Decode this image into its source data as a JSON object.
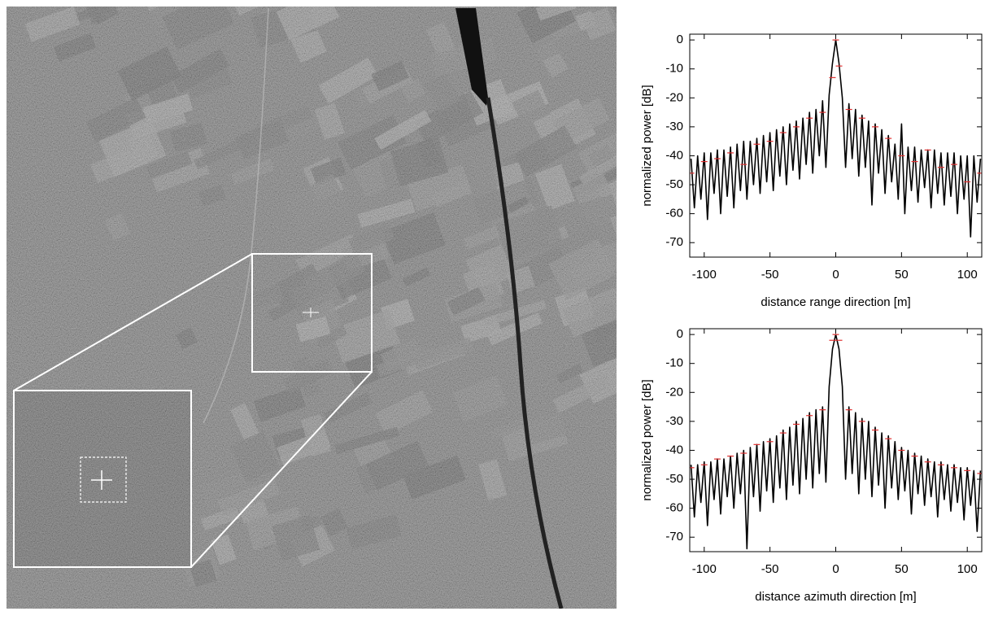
{
  "chart_data": [
    {
      "type": "line",
      "xlabel": "distance range direction [m]",
      "ylabel": "normalized power [dB]",
      "xlim": [
        -111,
        111
      ],
      "ylim": [
        -75,
        2
      ],
      "xticks": [
        -100,
        -50,
        0,
        50,
        100
      ],
      "yticks": [
        0,
        -10,
        -20,
        -30,
        -40,
        -50,
        -60,
        -70
      ],
      "grid": false,
      "x": [
        -110,
        -107.5,
        -105,
        -102.5,
        -100,
        -97.5,
        -95,
        -92.5,
        -90,
        -87.5,
        -85,
        -82.5,
        -80,
        -77.5,
        -75,
        -72.5,
        -70,
        -67.5,
        -65,
        -62.5,
        -60,
        -57.5,
        -55,
        -52.5,
        -50,
        -47.5,
        -45,
        -42.5,
        -40,
        -37.5,
        -35,
        -32.5,
        -30,
        -27.5,
        -25,
        -22.5,
        -20,
        -17.5,
        -15,
        -12.5,
        -10,
        -7.5,
        -5,
        -2.5,
        0,
        2.5,
        5,
        7.5,
        10,
        12.5,
        15,
        17.5,
        20,
        22.5,
        25,
        27.5,
        30,
        32.5,
        35,
        37.5,
        40,
        42.5,
        45,
        47.5,
        50,
        52.5,
        55,
        57.5,
        60,
        62.5,
        65,
        67.5,
        70,
        72.5,
        75,
        77.5,
        80,
        82.5,
        85,
        87.5,
        90,
        92.5,
        95,
        97.5,
        100,
        102.5,
        105,
        107.5,
        110
      ],
      "series": [
        {
          "color": "#000000",
          "values": [
            -41,
            -58,
            -40,
            -55,
            -39,
            -62,
            -39,
            -53,
            -38,
            -60,
            -38,
            -54,
            -37,
            -58,
            -36,
            -52,
            -35,
            -55,
            -35,
            -50,
            -34,
            -53,
            -33,
            -49,
            -32,
            -52,
            -31,
            -47,
            -30,
            -50,
            -29,
            -45,
            -28,
            -48,
            -27,
            -43,
            -25,
            -46,
            -24,
            -40,
            -21,
            -44,
            -19,
            -8,
            0,
            -8,
            -20,
            -44,
            -22,
            -41,
            -24,
            -47,
            -26,
            -44,
            -28,
            -57,
            -29,
            -46,
            -31,
            -53,
            -33,
            -49,
            -36,
            -55,
            -29,
            -60,
            -37,
            -52,
            -37,
            -56,
            -38,
            -51,
            -38,
            -58,
            -38,
            -53,
            -39,
            -57,
            -39,
            -54,
            -39,
            -60,
            -40,
            -55,
            -40,
            -68,
            -40,
            -56,
            -41
          ]
        },
        {
          "color": "#e03030",
          "marker": "dash",
          "x": [
            -110,
            -100,
            -90,
            -80,
            -70,
            -60,
            -50,
            -40,
            -30,
            -20,
            -10,
            -2.5,
            0,
            2.5,
            10,
            20,
            30,
            40,
            50,
            60,
            70,
            80,
            90,
            100,
            110
          ],
          "values": [
            -46,
            -42,
            -41,
            -39,
            -43,
            -36,
            -35,
            -32,
            -30,
            -27,
            -25,
            -13,
            0,
            -9,
            -24,
            -27,
            -30,
            -34,
            -40,
            -42,
            -38,
            -44,
            -43,
            -49,
            -46
          ]
        }
      ]
    },
    {
      "type": "line",
      "xlabel": "distance azimuth direction [m]",
      "ylabel": "normalized power [dB]",
      "xlim": [
        -111,
        111
      ],
      "ylim": [
        -75,
        2
      ],
      "xticks": [
        -100,
        -50,
        0,
        50,
        100
      ],
      "yticks": [
        0,
        -10,
        -20,
        -30,
        -40,
        -50,
        -60,
        -70
      ],
      "grid": false,
      "x": [
        -110,
        -107.5,
        -105,
        -102.5,
        -100,
        -97.5,
        -95,
        -92.5,
        -90,
        -87.5,
        -85,
        -82.5,
        -80,
        -77.5,
        -75,
        -72.5,
        -70,
        -67.5,
        -65,
        -62.5,
        -60,
        -57.5,
        -55,
        -52.5,
        -50,
        -47.5,
        -45,
        -42.5,
        -40,
        -37.5,
        -35,
        -32.5,
        -30,
        -27.5,
        -25,
        -22.5,
        -20,
        -17.5,
        -15,
        -12.5,
        -10,
        -7.5,
        -5,
        -2.5,
        0,
        2.5,
        5,
        7.5,
        10,
        12.5,
        15,
        17.5,
        20,
        22.5,
        25,
        27.5,
        30,
        32.5,
        35,
        37.5,
        40,
        42.5,
        45,
        47.5,
        50,
        52.5,
        55,
        57.5,
        60,
        62.5,
        65,
        67.5,
        70,
        72.5,
        75,
        77.5,
        80,
        82.5,
        85,
        87.5,
        90,
        92.5,
        95,
        97.5,
        100,
        102.5,
        105,
        107.5,
        110
      ],
      "series": [
        {
          "color": "#000000",
          "values": [
            -45,
            -63,
            -45,
            -58,
            -44,
            -66,
            -44,
            -57,
            -43,
            -62,
            -43,
            -56,
            -42,
            -60,
            -41,
            -55,
            -40,
            -74,
            -39,
            -56,
            -38,
            -61,
            -37,
            -54,
            -36,
            -58,
            -35,
            -53,
            -33,
            -57,
            -32,
            -52,
            -30,
            -55,
            -29,
            -50,
            -27,
            -53,
            -26,
            -48,
            -25,
            -51,
            -18,
            -5,
            0,
            -5,
            -18,
            -50,
            -25,
            -48,
            -27,
            -55,
            -29,
            -50,
            -30,
            -56,
            -32,
            -52,
            -34,
            -60,
            -35,
            -53,
            -37,
            -57,
            -39,
            -54,
            -40,
            -62,
            -41,
            -55,
            -42,
            -59,
            -43,
            -56,
            -44,
            -63,
            -44,
            -57,
            -45,
            -61,
            -45,
            -58,
            -46,
            -64,
            -46,
            -59,
            -47,
            -68,
            -47
          ]
        },
        {
          "color": "#e03030",
          "marker": "dash",
          "x": [
            -110,
            -100,
            -90,
            -80,
            -70,
            -60,
            -50,
            -40,
            -30,
            -20,
            -10,
            -2.5,
            0,
            2.5,
            10,
            20,
            30,
            40,
            50,
            60,
            70,
            80,
            90,
            100,
            110
          ],
          "values": [
            -46,
            -45,
            -43,
            -42,
            -41,
            -38,
            -37,
            -34,
            -31,
            -28,
            -26,
            -2,
            0,
            -2,
            -26,
            -30,
            -33,
            -36,
            -40,
            -42,
            -44,
            -45,
            -46,
            -47,
            -48
          ]
        }
      ]
    }
  ]
}
